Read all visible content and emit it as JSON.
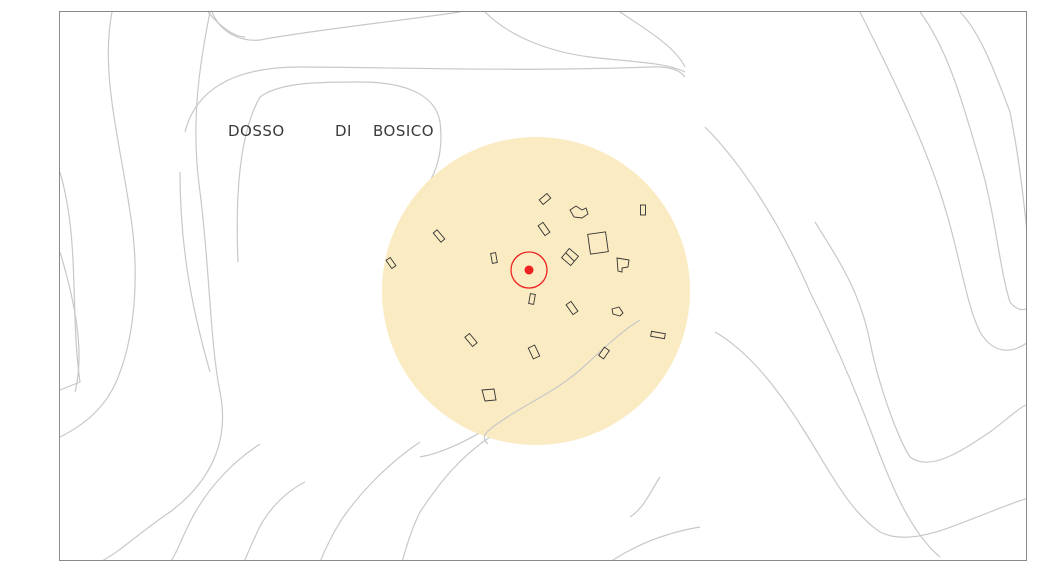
{
  "map": {
    "place_label": {
      "word1": "DOSSO",
      "word2": "DI",
      "word3": "BOSICO"
    },
    "buffer_color": "#fbe9bd",
    "marker_color": "#ee2222",
    "contour_color": "#c8c8c8",
    "frame_color": "#8a8a8a"
  }
}
